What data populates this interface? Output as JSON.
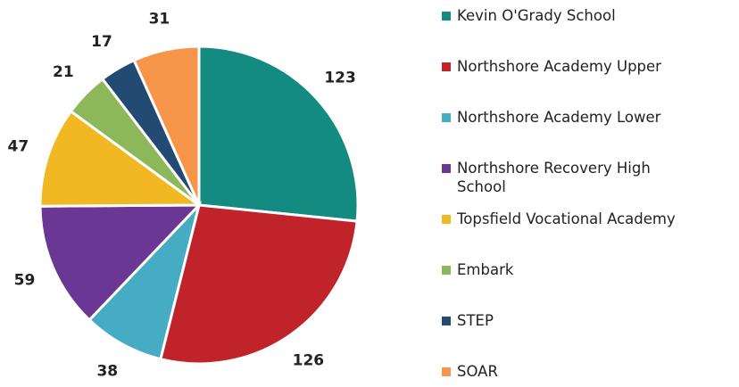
{
  "chart_data": {
    "type": "pie",
    "categories": [
      "Kevin O'Grady School",
      "Northshore Academy Upper",
      "Northshore Academy Lower",
      "Northshore Recovery High School",
      "Topsfield Vocational Academy",
      "Embark",
      "STEP",
      "SOAR"
    ],
    "values": [
      123,
      126,
      38,
      59,
      47,
      21,
      17,
      31
    ],
    "colors": [
      "#138b80",
      "#c1232b",
      "#45acc4",
      "#6b3795",
      "#f2b824",
      "#8db85a",
      "#234a73",
      "#f7964a"
    ],
    "legend": "right"
  }
}
